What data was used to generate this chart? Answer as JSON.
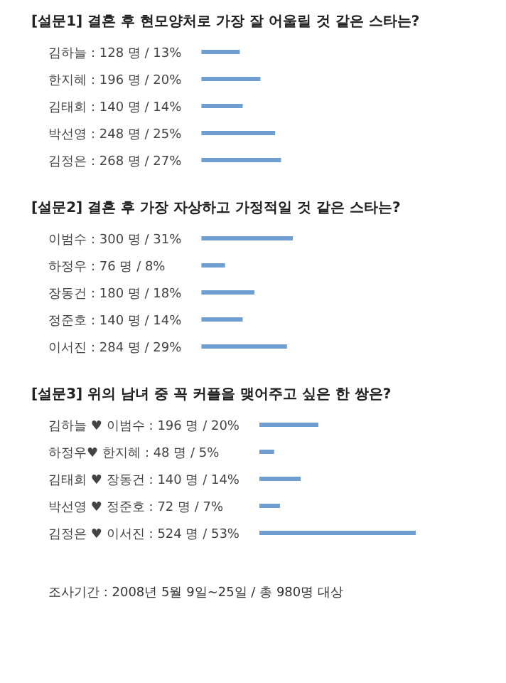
{
  "chart_data": [
    {
      "type": "bar",
      "orientation": "horizontal",
      "title": "[설문1] 결혼 후 현모양처로 가장 잘 어울릴 것 같은 스타는?",
      "categories": [
        "김하늘",
        "한지혜",
        "김태희",
        "박선영",
        "김정은"
      ],
      "values": [
        13,
        20,
        14,
        25,
        27
      ],
      "value_labels": [
        ": 128 명 / 13%",
        ": 196 명 / 20%",
        ": 140 명 / 14%",
        ": 248 명 / 25%",
        ": 268 명 / 27%"
      ],
      "color": "#6f9fd0"
    },
    {
      "type": "bar",
      "orientation": "horizontal",
      "title": "[설문2] 결혼 후 가장 자상하고 가정적일 것 같은 스타는?",
      "categories": [
        "이범수",
        "하정우",
        "장동건",
        "정준호",
        "이서진"
      ],
      "values": [
        31,
        8,
        18,
        14,
        29
      ],
      "value_labels": [
        ": 300 명 / 31%",
        ": 76 명 / 8%",
        ": 180 명 / 18%",
        ": 140 명 / 14%",
        ": 284 명 / 29%"
      ],
      "color": "#6f9fd0"
    },
    {
      "type": "bar",
      "orientation": "horizontal",
      "title": "[설문3] 위의 남녀 중 꼭 커플을 맺어주고 싶은 한 쌍은?",
      "categories": [
        "김하늘 ♥ 이범수",
        "하정우♥ 한지혜",
        "김태희 ♥ 장동건",
        "박선영 ♥ 정준호",
        "김정은 ♥ 이서진"
      ],
      "values": [
        20,
        5,
        14,
        7,
        53
      ],
      "value_labels": [
        ": 196 명 / 20%",
        ": 48 명 / 5%",
        ": 140 명 / 14%",
        ": 72 명 / 7%",
        ": 524 명 / 53%"
      ],
      "color": "#6f9fd0",
      "annotations": [
        "조사기간 : 2008년 5월 9일~25일 / 총 980명 대상"
      ]
    }
  ]
}
